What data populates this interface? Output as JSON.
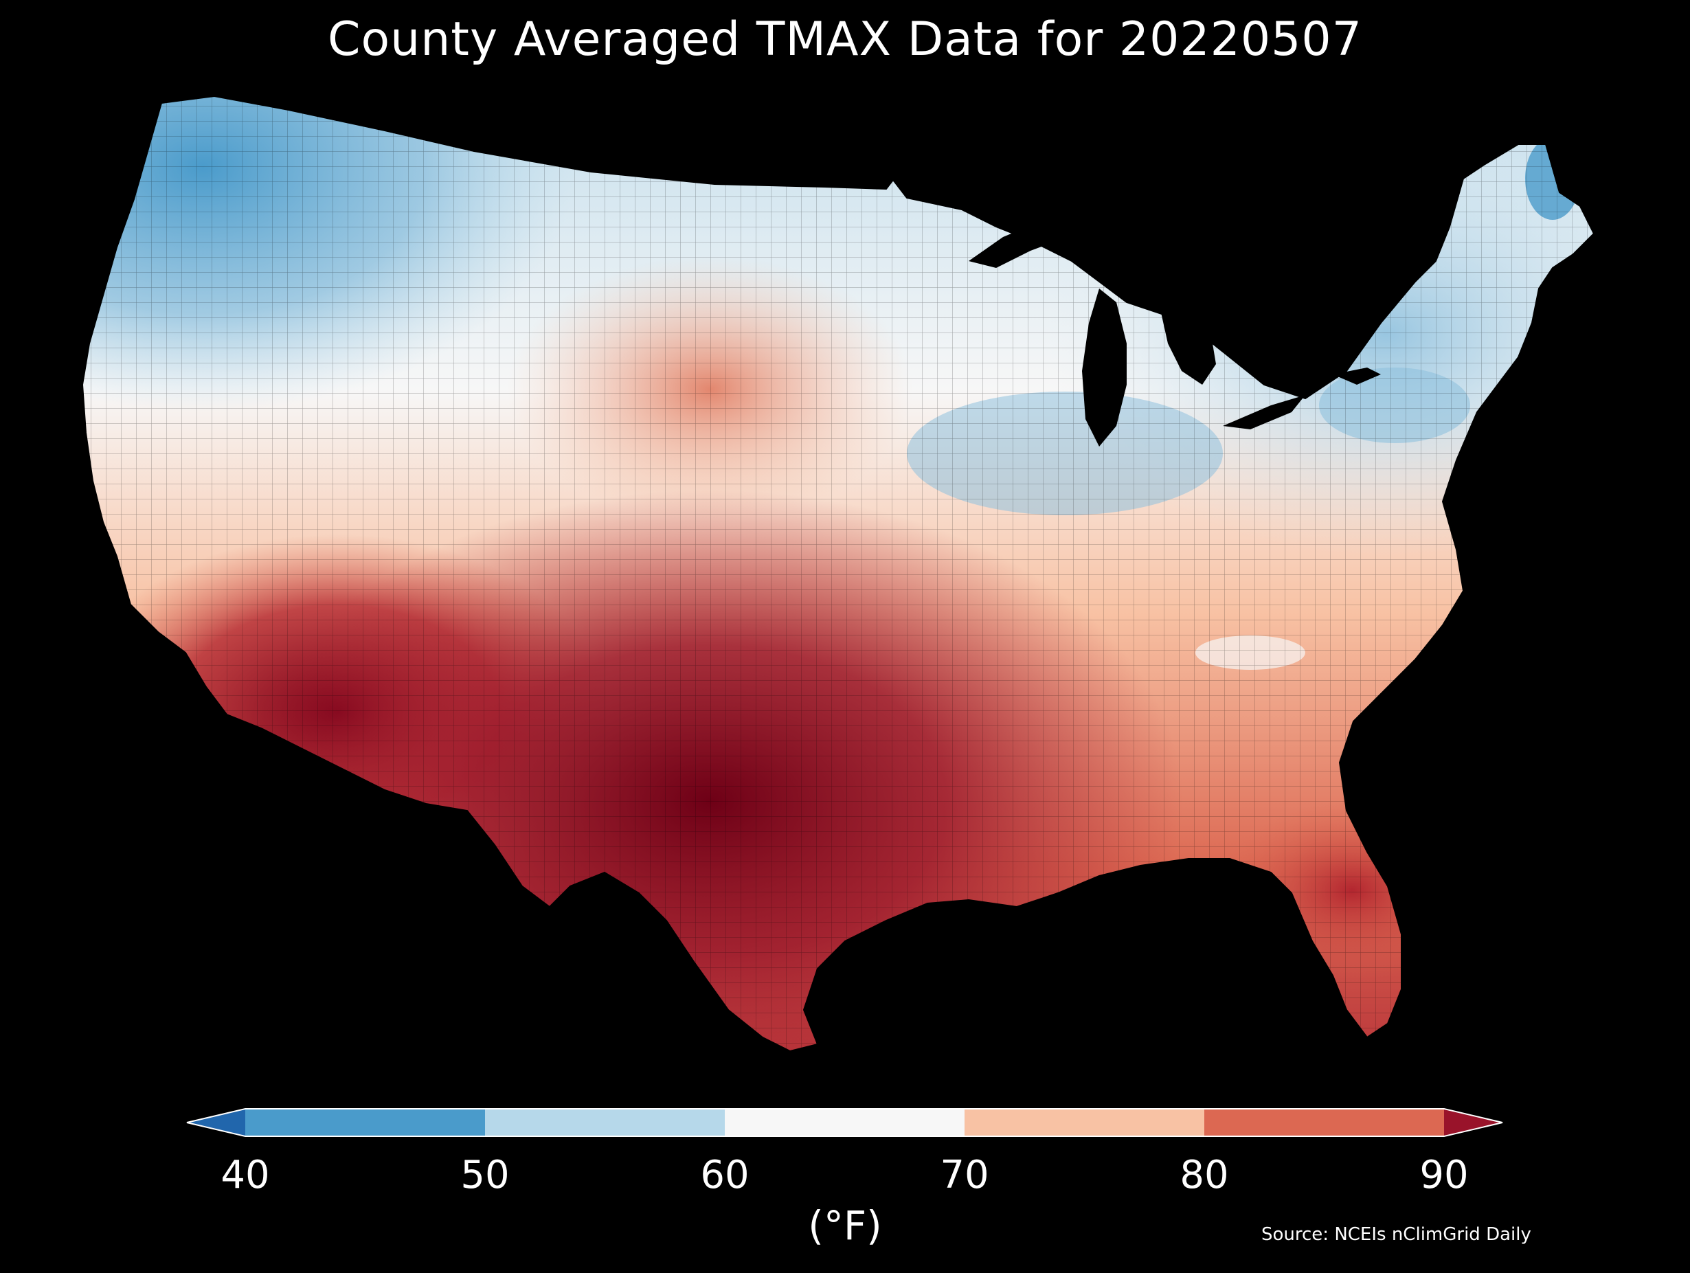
{
  "title": "County Averaged TMAX Data for 20220507",
  "colorbar": {
    "ticks": [
      "40",
      "50",
      "60",
      "70",
      "80",
      "90"
    ],
    "unit": "(°F)",
    "extend": "both",
    "bins": [
      {
        "range": "<40",
        "color": "#2166ac"
      },
      {
        "range": "40-50",
        "color": "#4a9bcb"
      },
      {
        "range": "50-60",
        "color": "#b6d8ea"
      },
      {
        "range": "60-70",
        "color": "#f7f7f7"
      },
      {
        "range": "70-80",
        "color": "#f8c2a4"
      },
      {
        "range": "80-90",
        "color": "#dc6852"
      },
      {
        "range": ">90",
        "color": "#99132a"
      }
    ]
  },
  "source": "Source: NCEIs nClimGrid Daily",
  "colors": {
    "background": "#000000",
    "text": "#ffffff"
  }
}
